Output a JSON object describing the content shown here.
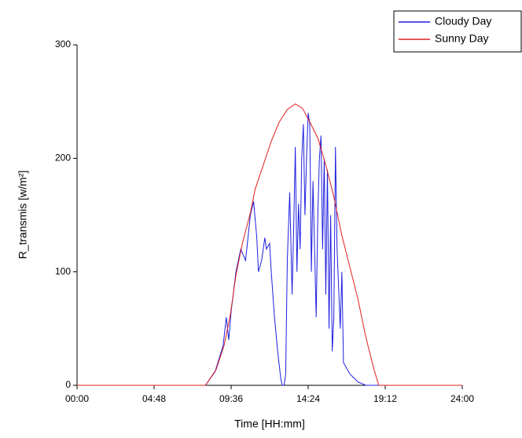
{
  "chart_data": {
    "type": "line",
    "xlabel": "Time [HH:mm]",
    "ylabel": "R_transmis [w/m²]",
    "xlim": [
      0,
      24
    ],
    "xticks": [
      {
        "value": 0,
        "label": "00:00"
      },
      {
        "value": 4.8,
        "label": "04:48"
      },
      {
        "value": 9.6,
        "label": "09:36"
      },
      {
        "value": 14.4,
        "label": "14:24"
      },
      {
        "value": 19.2,
        "label": "19:12"
      },
      {
        "value": 24,
        "label": "24:00"
      }
    ],
    "ylim": [
      0,
      300
    ],
    "yticks": [
      0,
      100,
      200,
      300
    ],
    "legend": "top-right",
    "series": [
      {
        "name": "Cloudy Day",
        "color": "#1f1fe0",
        "x": [
          0,
          8.0,
          8.6,
          9.1,
          9.3,
          9.45,
          9.6,
          9.9,
          10.2,
          10.5,
          10.8,
          11.0,
          11.2,
          11.3,
          11.5,
          11.7,
          11.8,
          12.0,
          12.1,
          12.3,
          12.5,
          12.7,
          12.8,
          12.9,
          13.0,
          13.1,
          13.25,
          13.4,
          13.5,
          13.6,
          13.7,
          13.8,
          13.9,
          14.0,
          14.1,
          14.2,
          14.3,
          14.4,
          14.5,
          14.6,
          14.7,
          14.8,
          14.9,
          15.0,
          15.1,
          15.2,
          15.3,
          15.4,
          15.5,
          15.6,
          15.7,
          15.8,
          15.9,
          16.0,
          16.1,
          16.2,
          16.4,
          16.5,
          16.6,
          16.8,
          17.0,
          17.5,
          18.0,
          24
        ],
        "values": [
          0,
          0,
          12,
          35,
          60,
          40,
          65,
          100,
          120,
          110,
          150,
          162,
          130,
          100,
          110,
          130,
          120,
          125,
          100,
          60,
          30,
          5,
          0,
          0,
          10,
          110,
          170,
          80,
          140,
          210,
          100,
          160,
          120,
          200,
          230,
          150,
          200,
          240,
          230,
          100,
          180,
          120,
          60,
          150,
          200,
          220,
          120,
          200,
          80,
          190,
          50,
          150,
          30,
          60,
          210,
          120,
          50,
          100,
          20,
          15,
          10,
          3,
          0,
          0
        ]
      },
      {
        "name": "Sunny Day",
        "color": "#e01f1f",
        "x": [
          0,
          8.0,
          8.67,
          9.16,
          9.55,
          9.9,
          10.3,
          10.8,
          11.1,
          11.6,
          12.1,
          12.6,
          13.1,
          13.6,
          14.05,
          14.5,
          15.0,
          15.5,
          16.0,
          16.5,
          17.0,
          17.5,
          18.0,
          18.5,
          18.8,
          24
        ],
        "values": [
          0,
          0,
          14,
          35,
          62,
          97,
          125,
          152,
          173,
          194,
          215,
          232,
          243,
          248,
          244,
          232,
          218,
          194,
          166,
          132,
          104,
          76,
          42,
          14,
          0,
          0
        ]
      }
    ]
  }
}
